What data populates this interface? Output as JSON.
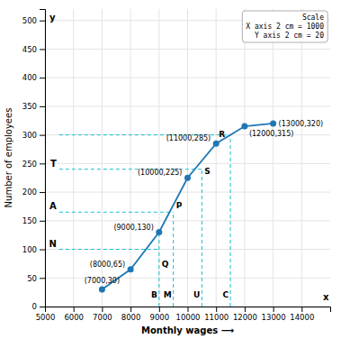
{
  "chart_data": {
    "type": "line",
    "x_label": "Monthly wages  ⟶",
    "y_label": "Number of employees",
    "x": [
      7000,
      8000,
      9000,
      10000,
      11000,
      12000,
      13000
    ],
    "values": [
      30,
      65,
      130,
      225,
      285,
      315,
      320
    ],
    "marker": "circle",
    "line_style": "solid",
    "construction_lines": [
      {
        "x": [
          5500,
          11500
        ],
        "y": [
          300,
          300
        ],
        "line_style": "dashed"
      },
      {
        "x": [
          5500,
          10500
        ],
        "y": [
          240,
          240
        ],
        "line_style": "dashed"
      },
      {
        "x": [
          5500,
          9500
        ],
        "y": [
          165,
          165
        ],
        "line_style": "dashed"
      },
      {
        "x": [
          5500,
          9000
        ],
        "y": [
          100,
          100
        ],
        "line_style": "dashed"
      },
      {
        "x": [
          9000,
          9000
        ],
        "y": [
          0,
          130
        ],
        "line_style": "dashed"
      },
      {
        "x": [
          9500,
          9500
        ],
        "y": [
          0,
          165
        ],
        "line_style": "dashed"
      },
      {
        "x": [
          10500,
          10500
        ],
        "y": [
          0,
          240
        ],
        "line_style": "dashed"
      },
      {
        "x": [
          11500,
          11500
        ],
        "y": [
          0,
          300
        ],
        "line_style": "dashed"
      }
    ],
    "annotations": [
      {
        "text": "(7000,30)",
        "x": 7000,
        "y": 30
      },
      {
        "text": "(8000,65)",
        "x": 8000,
        "y": 65
      },
      {
        "text": "(9000,130)",
        "x": 9000,
        "y": 130
      },
      {
        "text": "(10000,225)",
        "x": 10000,
        "y": 225
      },
      {
        "text": "(11000,285)",
        "x": 11000,
        "y": 285
      },
      {
        "text": "(12000,315)",
        "x": 12000,
        "y": 315
      },
      {
        "text": "(13000,320)",
        "x": 13000,
        "y": 320
      },
      {
        "text": "T",
        "x": 5500,
        "y": 240
      },
      {
        "text": "A",
        "x": 5500,
        "y": 165
      },
      {
        "text": "N",
        "x": 5500,
        "y": 100
      },
      {
        "text": "Q",
        "x": 9000,
        "y": 65
      },
      {
        "text": "P",
        "x": 9500,
        "y": 165
      },
      {
        "text": "S",
        "x": 10500,
        "y": 225
      },
      {
        "text": "R",
        "x": 11000,
        "y": 290
      },
      {
        "text": "B",
        "x": 9000,
        "y": 12
      },
      {
        "text": "M",
        "x": 9500,
        "y": 12
      },
      {
        "text": "U",
        "x": 10500,
        "y": 12
      },
      {
        "text": "C",
        "x": 11500,
        "y": 12
      },
      {
        "text": "x",
        "x": 14950,
        "y": 8
      },
      {
        "text": "y",
        "x": 5060,
        "y": 513
      }
    ],
    "scale_text": "Scale\nX axis 2 cm = 1000\nY axis 2 cm = 20",
    "xlim": [
      5000,
      15000
    ],
    "ylim": [
      0,
      520
    ],
    "xticks": [
      5000,
      6000,
      7000,
      8000,
      9000,
      10000,
      11000,
      12000,
      13000,
      14000
    ],
    "yticks": [
      0,
      50,
      100,
      150,
      200,
      250,
      300,
      350,
      400,
      450,
      500
    ],
    "grid": true
  }
}
